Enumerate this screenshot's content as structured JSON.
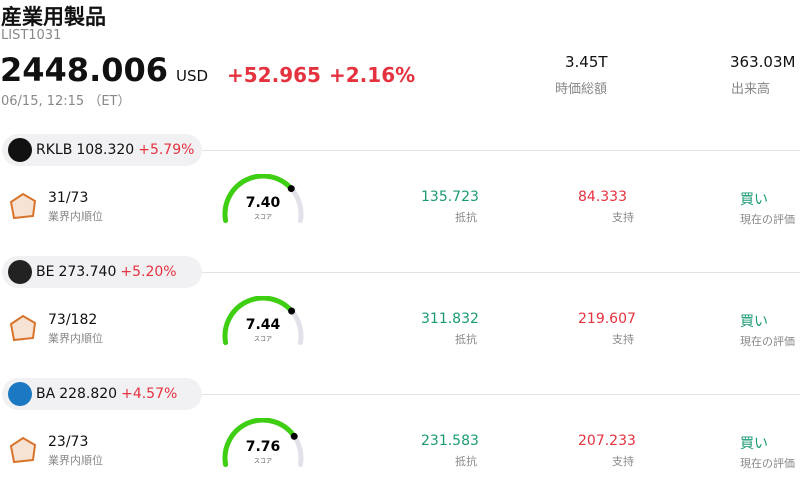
{
  "header": {
    "title": "産業用製品",
    "code": "LIST1031",
    "price": "2448.006",
    "currency": "USD",
    "change": "+52.965",
    "change_pct": "+2.16%",
    "time": "06/15, 12:15 （ET）",
    "stats": [
      {
        "value": "3.45T",
        "label": "時価総額"
      },
      {
        "value": "363.03M",
        "label": "出来高"
      }
    ]
  },
  "stocks": [
    {
      "ticker": "RKLB",
      "price": "108.320",
      "change": "+5.79%",
      "rank": "31/73",
      "rank_label": "業界内順位",
      "score": "7.40",
      "score_label": "スコア",
      "resistance": "135.723",
      "resistance_label": "抵抗",
      "support": "84.333",
      "support_label": "支持",
      "rating": "買い",
      "rating_label": "現在の評価"
    },
    {
      "ticker": "BE",
      "price": "273.740",
      "change": "+5.20%",
      "rank": "73/182",
      "rank_label": "業界内順位",
      "score": "7.44",
      "score_label": "スコア",
      "resistance": "311.832",
      "resistance_label": "抵抗",
      "support": "219.607",
      "support_label": "支持",
      "rating": "買い",
      "rating_label": "現在の評価"
    },
    {
      "ticker": "BA",
      "price": "228.820",
      "change": "+4.57%",
      "rank": "23/73",
      "rank_label": "業界内順位",
      "score": "7.76",
      "score_label": "スコア",
      "resistance": "231.583",
      "resistance_label": "抵抗",
      "support": "207.233",
      "support_label": "支持",
      "rating": "買い",
      "rating_label": "現在の評価"
    }
  ]
}
